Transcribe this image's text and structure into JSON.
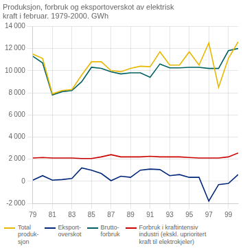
{
  "chart_data": {
    "type": "line",
    "title": "Produksjon, forbruk og eksportoverskot av elektrisk\nkraft i februar. 1979-2000. GWh",
    "x": [
      79,
      80,
      81,
      82,
      83,
      84,
      85,
      86,
      87,
      88,
      89,
      90,
      91,
      92,
      93,
      94,
      95,
      96,
      97,
      98,
      99,
      100
    ],
    "series": [
      {
        "name": "Total\nproduk-\nsjon",
        "color": "#e8b800",
        "values": [
          11500,
          11100,
          7900,
          8200,
          8300,
          9600,
          10800,
          10800,
          10000,
          9900,
          10200,
          10400,
          10350,
          11700,
          10500,
          10500,
          11700,
          10500,
          12500,
          8500,
          11100,
          12600
        ]
      },
      {
        "name": "Eksport-\noverskot",
        "color": "#00277a",
        "values": [
          100,
          500,
          100,
          150,
          250,
          1200,
          1000,
          700,
          50,
          450,
          350,
          1000,
          1100,
          1050,
          500,
          600,
          350,
          350,
          -1800,
          -300,
          -200,
          600
        ]
      },
      {
        "name": "Brutto-\nforbruk",
        "color": "#006060",
        "values": [
          11300,
          10700,
          7800,
          8100,
          8200,
          9000,
          10300,
          10200,
          9900,
          9700,
          9800,
          9800,
          9400,
          10600,
          10250,
          10250,
          10300,
          10300,
          10200,
          10200,
          11800,
          12000
        ]
      },
      {
        "name": "Forbruk i kraftintensiv\nindustri (ekskl. uprioritert\nkraft til elektrokjeler)",
        "color": "#cc0000",
        "values": [
          2100,
          2150,
          2100,
          2100,
          2100,
          2050,
          2050,
          2200,
          2400,
          2200,
          2200,
          2200,
          2250,
          2200,
          2200,
          2200,
          2150,
          2100,
          2100,
          2100,
          2200,
          2550
        ]
      }
    ],
    "xlim": [
      79,
      100
    ],
    "xticks": [
      79,
      81,
      83,
      85,
      87,
      89,
      91,
      93,
      95,
      97,
      99
    ],
    "ylim": [
      -2000,
      14000
    ],
    "yticks": [
      {
        "value": -2000,
        "label": "-2 000"
      },
      0,
      {
        "value": 2000,
        "label": "2 000"
      },
      {
        "value": 4000,
        "label": "4 000"
      },
      {
        "value": 6000,
        "label": "6 000"
      },
      {
        "value": 8000,
        "label": "8 000"
      },
      {
        "value": 10000,
        "label": "10 000"
      },
      {
        "value": 12000,
        "label": "12 000"
      },
      {
        "value": 14000,
        "label": "14 000"
      }
    ],
    "grid": true,
    "legend": "bottom"
  }
}
